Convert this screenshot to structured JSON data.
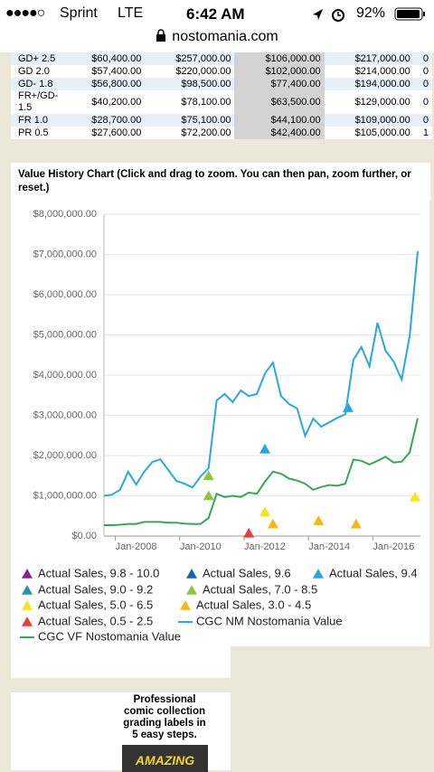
{
  "status_bar": {
    "signal": "●●●●○",
    "carrier": "Sprint",
    "network": "LTE",
    "time": "6:42 AM",
    "battery": "92%"
  },
  "url": "nostomania.com",
  "table": {
    "rows": [
      [
        "GD+ 2.5",
        "$60,400.00",
        "$257,000.00",
        "$106,000.00",
        "$217,000.00",
        "0"
      ],
      [
        "GD 2.0",
        "$57,400.00",
        "$220,000.00",
        "$102,000.00",
        "$214,000.00",
        "0"
      ],
      [
        "GD- 1.8",
        "$56,800.00",
        "$98,500.00",
        "$77,400.00",
        "$194,000.00",
        "0"
      ],
      [
        "FR+/GD-1.5",
        "$40,200.00",
        "$78,100.00",
        "$63,500.00",
        "$129,000.00",
        "0"
      ],
      [
        "FR 1.0",
        "$28,700.00",
        "$75,100.00",
        "$44,100.00",
        "$109,000.00",
        "0"
      ],
      [
        "PR 0.5",
        "$27,600.00",
        "$72,200.00",
        "$42,400.00",
        "$105,000.00",
        "1"
      ]
    ]
  },
  "chart_heading": "Value History Chart (Click and drag to zoom. You can then pan, zoom further, or reset.)",
  "chart_data": {
    "type": "line",
    "x": [
      "2007-01",
      "2007-04",
      "2007-07",
      "2007-10",
      "2008-01",
      "2008-04",
      "2008-07",
      "2008-10",
      "2009-01",
      "2009-04",
      "2009-07",
      "2009-10",
      "2010-01",
      "2010-04",
      "2010-07",
      "2010-10",
      "2011-01",
      "2011-04",
      "2011-07",
      "2011-10",
      "2012-01",
      "2012-04",
      "2012-07",
      "2012-10",
      "2013-01",
      "2013-04",
      "2013-07",
      "2013-10",
      "2014-01",
      "2014-04",
      "2014-07",
      "2014-10",
      "2015-01",
      "2015-04",
      "2015-07",
      "2015-10",
      "2016-01",
      "2016-04",
      "2016-07",
      "2016-10"
    ],
    "xlim": [
      "2007-01",
      "2016-11"
    ],
    "xticks": [
      {
        "value": "2008-01",
        "label": "Jan-2008"
      },
      {
        "value": "2010-01",
        "label": "Jan-2010"
      },
      {
        "value": "2012-01",
        "label": "Jan-2012"
      },
      {
        "value": "2014-01",
        "label": "Jan-2014"
      },
      {
        "value": "2016-01",
        "label": "Jan-2016"
      }
    ],
    "ylim": [
      0,
      8000000
    ],
    "yticks": [
      {
        "value": 0,
        "label": "$0.00"
      },
      {
        "value": 1000000,
        "label": "$1,000,000.00"
      },
      {
        "value": 2000000,
        "label": "$2,000,000.00"
      },
      {
        "value": 3000000,
        "label": "$3,000,000.00"
      },
      {
        "value": 4000000,
        "label": "$4,000,000.00"
      },
      {
        "value": 5000000,
        "label": "$5,000,000.00"
      },
      {
        "value": 6000000,
        "label": "$6,000,000.00"
      },
      {
        "value": 7000000,
        "label": "$7,000,000.00"
      },
      {
        "value": 8000000,
        "label": "$8,000,000.00"
      }
    ],
    "grid": true,
    "series": [
      {
        "name": "Actual Sales, 9.8 - 10.0",
        "type": "scatter",
        "color": "#8e1f8e",
        "x": [],
        "values": []
      },
      {
        "name": "Actual Sales, 9.6",
        "type": "scatter",
        "color": "#1565b0",
        "x": [],
        "values": []
      },
      {
        "name": "Actual Sales, 9.4",
        "type": "scatter",
        "color": "#1fa8e0",
        "x": [
          "2012-01",
          "2014-08"
        ],
        "values": [
          2160000,
          3190000
        ]
      },
      {
        "name": "Actual Sales, 9.0 - 9.2",
        "type": "scatter",
        "color": "#1b9aaa",
        "x": [],
        "values": []
      },
      {
        "name": "Actual Sales, 7.0 - 8.5",
        "type": "scatter",
        "color": "#8dc63f",
        "x": [
          "2010-04",
          "2010-04"
        ],
        "values": [
          1500000,
          1000000
        ]
      },
      {
        "name": "Actual Sales, 5.0 - 6.5",
        "type": "scatter",
        "color": "#f5e41a",
        "x": [
          "2012-01",
          "2016-09"
        ],
        "values": [
          600000,
          970000
        ]
      },
      {
        "name": "Actual Sales, 3.0 - 4.5",
        "type": "scatter",
        "color": "#f6b913",
        "x": [
          "2012-04",
          "2013-09",
          "2014-11"
        ],
        "values": [
          300000,
          380000,
          300000
        ]
      },
      {
        "name": "Actual Sales, 0.5 - 2.5",
        "type": "scatter",
        "color": "#ee3b3b",
        "x": [
          "2011-07"
        ],
        "values": [
          70000
        ]
      },
      {
        "name": "CGC NM Nostomania Value",
        "type": "line",
        "color": "#29a8e0",
        "values": [
          1000000,
          1030000,
          1150000,
          1600000,
          1280000,
          1600000,
          1840000,
          1910000,
          1640000,
          1370000,
          1300000,
          1210000,
          1480000,
          1690000,
          3370000,
          3530000,
          3330000,
          3620000,
          3480000,
          3530000,
          4040000,
          4310000,
          3480000,
          3280000,
          3170000,
          2490000,
          2920000,
          2720000,
          2830000,
          2940000,
          3030000,
          4380000,
          4700000,
          4220000,
          5300000,
          4610000,
          4340000,
          3890000,
          4970000,
          7080000
        ]
      },
      {
        "name": "CGC VF Nostomania Value",
        "type": "line",
        "color": "#3aa655",
        "values": [
          270000,
          270000,
          280000,
          300000,
          300000,
          350000,
          350000,
          350000,
          330000,
          330000,
          310000,
          300000,
          300000,
          450000,
          1050000,
          970000,
          1000000,
          970000,
          1080000,
          1050000,
          1350000,
          1600000,
          1550000,
          1430000,
          1380000,
          1300000,
          1150000,
          1220000,
          1270000,
          1250000,
          1300000,
          1900000,
          1870000,
          1780000,
          1870000,
          1970000,
          1830000,
          1850000,
          2080000,
          2930000
        ]
      }
    ]
  },
  "ad": {
    "text": "Professional comic collection grading labels in 5 easy steps.",
    "image_text": "AMAZING"
  }
}
